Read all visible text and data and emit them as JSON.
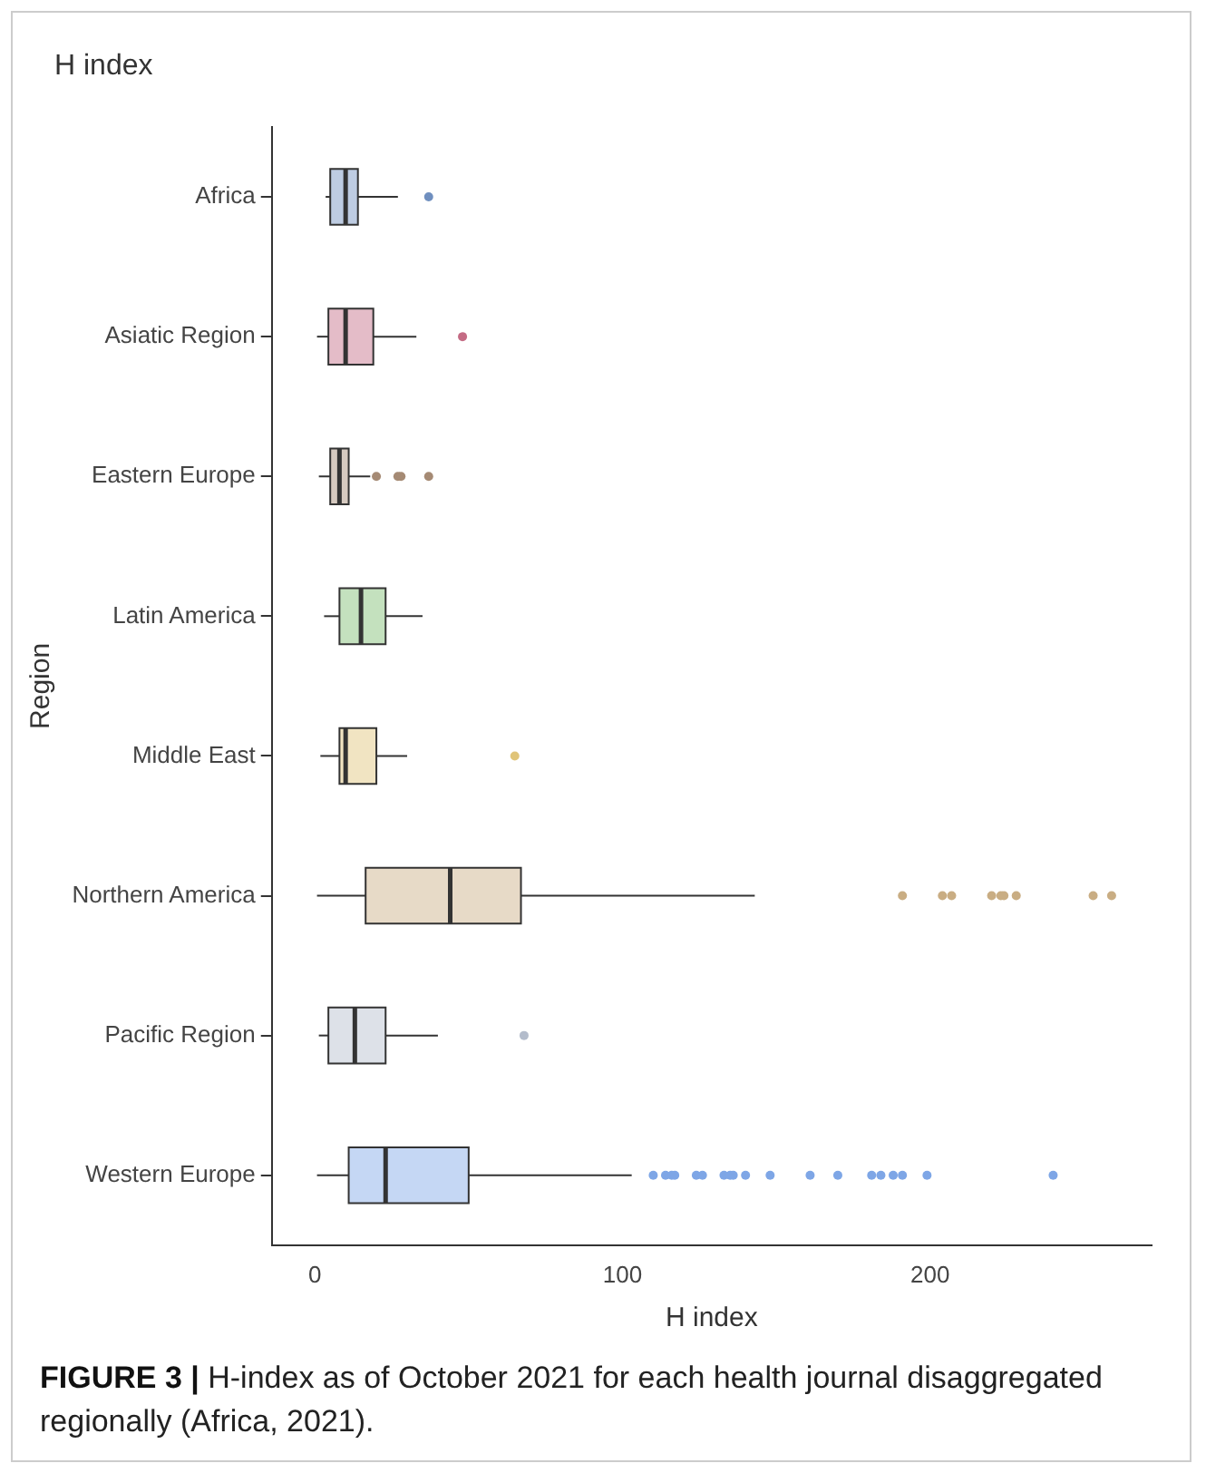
{
  "chart_data": {
    "type": "box",
    "orientation": "horizontal",
    "title": "H index",
    "xlabel": "H index",
    "ylabel": "Region",
    "categories": [
      "Africa",
      "Asiatic Region",
      "Eastern Europe",
      "Latin America",
      "Middle East",
      "Northern America",
      "Pacific Region",
      "Western Europe"
    ],
    "colors": [
      "#6f8fbf",
      "#c46b84",
      "#a58a74",
      "#7dbd6e",
      "#e0c478",
      "#c9ad83",
      "#b3bccb",
      "#7ea6e6"
    ],
    "boxes": [
      {
        "low": 3.5,
        "q1": 5,
        "median": 10,
        "q3": 14,
        "high": 27,
        "outliers": [
          37
        ]
      },
      {
        "low": 0.7,
        "q1": 4.4,
        "median": 10,
        "q3": 19,
        "high": 33,
        "outliers": [
          48
        ]
      },
      {
        "low": 1.3,
        "q1": 5,
        "median": 8,
        "q3": 11,
        "high": 18,
        "outliers": [
          20,
          27,
          28,
          37
        ]
      },
      {
        "low": 3,
        "q1": 8,
        "median": 15,
        "q3": 23,
        "high": 35
      },
      {
        "low": 1.8,
        "q1": 8,
        "median": 10,
        "q3": 20,
        "high": 30,
        "outliers": [
          65
        ]
      },
      {
        "low": 0.7,
        "q1": 16.5,
        "median": 44,
        "q3": 67,
        "high": 143,
        "outliers": [
          191,
          204,
          207,
          220,
          223,
          224,
          228,
          253,
          259
        ]
      },
      {
        "low": 1.3,
        "q1": 4.4,
        "median": 13,
        "q3": 23,
        "high": 40,
        "outliers": [
          68
        ]
      },
      {
        "low": 0.7,
        "q1": 11,
        "median": 23,
        "q3": 50,
        "high": 103,
        "outliers": [
          110,
          114,
          116,
          117,
          124,
          126,
          133,
          135,
          136,
          140,
          148,
          161,
          170,
          181,
          184,
          188,
          191,
          199,
          240
        ]
      }
    ],
    "xlim": [
      -14,
      272
    ],
    "xticks": [
      0,
      100,
      200
    ],
    "grid": false,
    "legend": false,
    "annotations": [
      "FIGURE 3 | H-index as of October 2021 for each health journal disaggregated regionally (Africa, 2021)."
    ]
  }
}
